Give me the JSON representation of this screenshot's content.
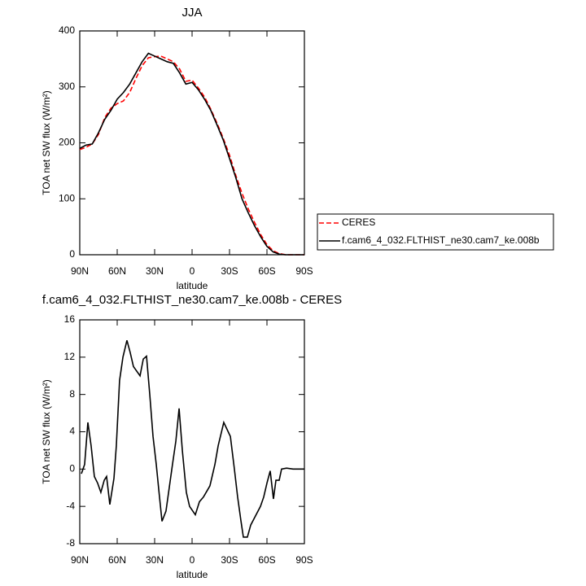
{
  "chart_data": [
    {
      "type": "line",
      "title": "JJA",
      "xlabel": "latitude",
      "ylabel": "TOA net SW flux (W/m²)",
      "x": [
        90,
        85,
        80,
        75,
        70,
        65,
        60,
        55,
        50,
        45,
        40,
        35,
        30,
        25,
        20,
        15,
        10,
        5,
        0,
        -5,
        -10,
        -15,
        -20,
        -25,
        -30,
        -35,
        -40,
        -45,
        -50,
        -55,
        -60,
        -65,
        -70,
        -75,
        -80,
        -85,
        -90
      ],
      "xlim": [
        90,
        -90
      ],
      "xticks": [
        {
          "value": 90,
          "label": "90N"
        },
        {
          "value": 60,
          "label": "60N"
        },
        {
          "value": 30,
          "label": "30N"
        },
        0,
        {
          "value": -30,
          "label": "30S"
        },
        {
          "value": -60,
          "label": "60S"
        },
        {
          "value": -90,
          "label": "90S"
        }
      ],
      "ylim": [
        0,
        400
      ],
      "yticks": [
        0,
        100,
        200,
        300,
        400
      ],
      "legend": "right",
      "series": [
        {
          "name": "CERES",
          "color": "#ff0000",
          "line_style": "dashed",
          "values": [
            188,
            192,
            198,
            215,
            245,
            262,
            270,
            275,
            290,
            315,
            338,
            352,
            354,
            355,
            350,
            345,
            332,
            310,
            312,
            298,
            282,
            260,
            235,
            208,
            178,
            142,
            110,
            82,
            58,
            36,
            18,
            7,
            2,
            0,
            0,
            0,
            0
          ]
        },
        {
          "name": "f.cam6_4_032.FLTHIST_ne30.cam7_ke.008b",
          "color": "#000000",
          "line_style": "solid",
          "values": [
            190,
            196,
            198,
            218,
            242,
            258,
            278,
            290,
            305,
            325,
            345,
            360,
            355,
            350,
            345,
            342,
            325,
            305,
            308,
            295,
            278,
            258,
            232,
            205,
            172,
            138,
            100,
            75,
            52,
            32,
            15,
            5,
            1,
            0,
            0,
            0,
            0
          ]
        }
      ]
    },
    {
      "type": "line",
      "title": "f.cam6_4_032.FLTHIST_ne30.cam7_ke.008b - CERES",
      "xlabel": "latitude",
      "ylabel": "TOA net SW flux (W/m²)",
      "x": [
        88.7,
        86.1,
        83.5,
        80.9,
        78.3,
        75.7,
        73.1,
        70.4,
        68.5,
        65.9,
        62.6,
        60.7,
        58.1,
        55.4,
        52.2,
        49.6,
        47.0,
        41.7,
        39.1,
        36.5,
        33.9,
        31.3,
        28.7,
        26.1,
        24.1,
        20.9,
        18.3,
        15.7,
        13.0,
        10.4,
        7.8,
        4.6,
        2.0,
        -2.6,
        -5.9,
        -9.1,
        -14.3,
        -18.3,
        -20.9,
        -25.4,
        -30.7,
        -33.9,
        -36.5,
        -39.1,
        -41.1,
        -44.3,
        -47.0,
        -50.9,
        -54.8,
        -57.4,
        -60.0,
        -62.6,
        -65.2,
        -67.2,
        -69.8,
        -71.7,
        -75.7,
        -80.9,
        -90
      ],
      "xlim": [
        90,
        -90
      ],
      "xticks": [
        {
          "value": 90,
          "label": "90N"
        },
        {
          "value": 60,
          "label": "60N"
        },
        {
          "value": 30,
          "label": "30N"
        },
        0,
        {
          "value": -30,
          "label": "30S"
        },
        {
          "value": -60,
          "label": "60S"
        },
        {
          "value": -90,
          "label": "90S"
        }
      ],
      "ylim": [
        -8,
        16
      ],
      "yticks": [
        -8,
        -4,
        0,
        4,
        8,
        12,
        16
      ],
      "series": [
        {
          "color": "#000000",
          "line_style": "solid",
          "values": [
            -0.5,
            0.5,
            5,
            2.5,
            -0.8,
            -1.5,
            -2.5,
            -1.2,
            -0.8,
            -3.8,
            -1,
            2.5,
            9.5,
            12,
            13.8,
            12.5,
            11,
            10,
            11.8,
            12.1,
            8,
            3.5,
            0.5,
            -3,
            -5.6,
            -4.5,
            -2,
            0.5,
            3,
            6.5,
            2,
            -2.5,
            -4,
            -4.9,
            -3.5,
            -3,
            -1.8,
            0.5,
            2.5,
            5,
            3.5,
            0,
            -3,
            -5.5,
            -7.3,
            -7.3,
            -6,
            -5,
            -4,
            -3,
            -1.5,
            -0.2,
            -3.2,
            -1.2,
            -1.2,
            0,
            0.1,
            0,
            0
          ]
        }
      ]
    }
  ]
}
